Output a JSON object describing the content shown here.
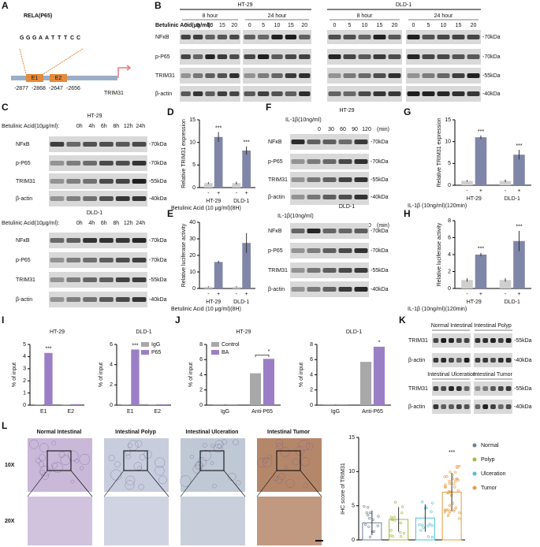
{
  "panel_letters": [
    "A",
    "B",
    "C",
    "D",
    "E",
    "F",
    "G",
    "H",
    "I",
    "J",
    "K",
    "L"
  ],
  "promoter": {
    "gene": "RELA(P65)",
    "logo": "GGGAATTTCC",
    "elements": [
      "E1",
      "E2"
    ],
    "positions": [
      "-2877",
      "-2868",
      "-2647",
      "-2656"
    ],
    "target": "TRIM31"
  },
  "blot_b": {
    "cell_lines": [
      "HT-29",
      "DLD-1"
    ],
    "times": [
      "8 hour",
      "24 hour"
    ],
    "treatment": "Betulinic Acid(μg/ml):",
    "doses": [
      "0",
      "5",
      "10",
      "15",
      "20"
    ],
    "rows": [
      "NFκB",
      "p-P65",
      "TRIM31",
      "β-actin"
    ],
    "kda": [
      "-70kDa",
      "-70kDa",
      "-55kDa",
      "-40kDa"
    ]
  },
  "blot_c": {
    "cell_lines": [
      "HT-29",
      "DLD-1"
    ],
    "treatment": "Betulinic Acid(10μg/ml):",
    "times": [
      "0h",
      "4h",
      "6h",
      "8h",
      "12h",
      "24h"
    ],
    "rows": [
      "NFκB",
      "p-P65",
      "TRIM31",
      "β-actin"
    ],
    "kda": [
      "-70kDa",
      "-70kDa",
      "-55kDa",
      "-40kDa"
    ]
  },
  "blot_f": {
    "cell_lines": [
      "HT-29",
      "DLD-1"
    ],
    "treatment": "IL-1β(10ng/ml)",
    "doses": [
      "0",
      "30",
      "60",
      "90",
      "120"
    ],
    "unit": "(min)",
    "rows": [
      "NFκB",
      "p-P65",
      "TRIM31",
      "β-actin"
    ],
    "kda": [
      "-70kDa",
      "-70kDa",
      "-55kDa",
      "-40kDa"
    ]
  },
  "blot_k": {
    "groups": [
      "Normal Intestinal",
      "Intestinal Polyp",
      "Intestinal Ulceration",
      "Intestinal Tumor"
    ],
    "rows": [
      "TRIM31",
      "β-actin"
    ],
    "kda": [
      "-55kDa",
      "-40kDa"
    ]
  },
  "histology": {
    "groups": [
      "Normal Intestinal",
      "Intestinal Polyp",
      "Intestinal Ulceration",
      "Intestinal Tumor"
    ],
    "magnifications": [
      "10X",
      "20X"
    ]
  },
  "chart_data": [
    {
      "type": "bar",
      "ylabel": "Relative TRIM31 expression",
      "xlabel": "Betulinic Acid (10 μg/ml)(8H)",
      "categories": [
        "HT-29",
        "DLD-1"
      ],
      "ylim": [
        0,
        15
      ],
      "yticks": [
        0,
        5,
        10,
        15
      ],
      "series": [
        {
          "name": "-",
          "color": "#cfcfcf",
          "values": [
            1,
            1
          ],
          "errors": [
            0.2,
            0.3
          ]
        },
        {
          "name": "+",
          "color": "#7f86a8",
          "values": [
            11.2,
            8.2
          ],
          "errors": [
            1.1,
            0.9
          ],
          "labels": [
            "***",
            "***"
          ]
        }
      ]
    },
    {
      "type": "bar",
      "ylabel": "Relative luciferase activity",
      "xlabel": "Betulinic Acid (10 μg/ml)(8H)",
      "categories": [
        "HT-29",
        "DLD-1"
      ],
      "ylim": [
        0,
        40
      ],
      "yticks": [
        0,
        10,
        20,
        30,
        40
      ],
      "series": [
        {
          "name": "-",
          "color": "#cfcfcf",
          "values": [
            1,
            1
          ],
          "errors": [
            0.3,
            0.3
          ]
        },
        {
          "name": "+",
          "color": "#7f86a8",
          "values": [
            16,
            27.5
          ],
          "errors": [
            0.8,
            6
          ]
        }
      ],
      "labels_note": null
    },
    {
      "type": "bar",
      "ylabel": "Relative TRIM31 expression",
      "xlabel": "IL-1β (10ng/ml)(120min)",
      "categories": [
        "HT-29",
        "DLD-1"
      ],
      "ylim": [
        0,
        15
      ],
      "yticks": [
        0,
        5,
        10,
        15
      ],
      "series": [
        {
          "name": "-",
          "color": "#cfcfcf",
          "values": [
            1,
            1
          ],
          "errors": [
            0.2,
            0.3
          ]
        },
        {
          "name": "+",
          "color": "#7f86a8",
          "values": [
            11,
            7
          ],
          "errors": [
            0.4,
            1.1
          ],
          "labels": [
            "***",
            "***"
          ]
        }
      ]
    },
    {
      "type": "bar",
      "ylabel": "Relative luciferase activity",
      "xlabel": "IL-1β (10ng/ml)(120min)",
      "categories": [
        "HT-29",
        "DLD-1"
      ],
      "ylim": [
        0,
        8
      ],
      "yticks": [
        0,
        2,
        4,
        6,
        8
      ],
      "series": [
        {
          "name": "-",
          "color": "#cfcfcf",
          "values": [
            1,
            1
          ],
          "errors": [
            0.2,
            0.2
          ]
        },
        {
          "name": "+",
          "color": "#7f86a8",
          "values": [
            4,
            5.6
          ],
          "errors": [
            0.2,
            1.2
          ],
          "labels": [
            "***",
            "***"
          ]
        }
      ]
    },
    {
      "type": "bar",
      "title": "HT-29",
      "ylabel": "% of input",
      "categories": [
        "E1",
        "E2"
      ],
      "ylim": [
        0,
        5
      ],
      "yticks": [
        0,
        1,
        2,
        3,
        4,
        5
      ],
      "series": [
        {
          "name": "IgG",
          "color": "#a8a8a8",
          "values": [
            0.02,
            0.02
          ]
        },
        {
          "name": "P65",
          "color": "#9b7fc6",
          "values": [
            4.3,
            0.08
          ],
          "labels": [
            "***",
            null
          ]
        }
      ]
    },
    {
      "type": "bar",
      "title": "DLD-1",
      "ylabel": "% of input",
      "categories": [
        "E1",
        "E2"
      ],
      "ylim": [
        0,
        6
      ],
      "yticks": [
        0,
        2,
        4,
        6
      ],
      "legend": "top-right",
      "series": [
        {
          "name": "IgG",
          "color": "#a8a8a8",
          "values": [
            0.02,
            0.02
          ]
        },
        {
          "name": "P65",
          "color": "#9b7fc6",
          "values": [
            5.5,
            0.08
          ],
          "labels": [
            "***",
            null
          ]
        }
      ]
    },
    {
      "type": "bar",
      "title": "HT-29",
      "ylabel": "% of input",
      "categories": [
        "IgG",
        "Anti-P65"
      ],
      "ylim": [
        0,
        8
      ],
      "yticks": [
        0,
        2,
        4,
        6,
        8
      ],
      "legend": "top-left",
      "bracket": true,
      "series": [
        {
          "name": "Control",
          "color": "#a8a8a8",
          "values": [
            0.02,
            4.2
          ]
        },
        {
          "name": "BA",
          "color": "#9b7fc6",
          "values": [
            0.02,
            6.1
          ],
          "labels": [
            null,
            "*"
          ]
        }
      ]
    },
    {
      "type": "bar",
      "title": "DLD-1",
      "ylabel": "% of input",
      "categories": [
        "IgG",
        "Anti-P65"
      ],
      "ylim": [
        0,
        8
      ],
      "yticks": [
        0,
        2,
        4,
        6,
        8
      ],
      "series": [
        {
          "name": "Control",
          "color": "#a8a8a8",
          "values": [
            0.02,
            5.7
          ]
        },
        {
          "name": "BA",
          "color": "#9b7fc6",
          "values": [
            0.02,
            7.7
          ],
          "labels": [
            null,
            "*"
          ]
        }
      ]
    },
    {
      "type": "dot",
      "ylabel": "IHC score of TRIM31",
      "categories": [
        "Normal",
        "Polyp",
        "Ulceration",
        "Tumor"
      ],
      "colors": [
        "#6f8198",
        "#a6b83a",
        "#4fc0d0",
        "#e89a3c"
      ],
      "ylim": [
        0,
        15
      ],
      "yticks": [
        0,
        5,
        10,
        15
      ],
      "legend": "right",
      "values": [
        2.5,
        3,
        3.2,
        7
      ],
      "errors": [
        1.8,
        1.8,
        2,
        2.8
      ],
      "labels": [
        null,
        null,
        null,
        "***"
      ]
    }
  ]
}
